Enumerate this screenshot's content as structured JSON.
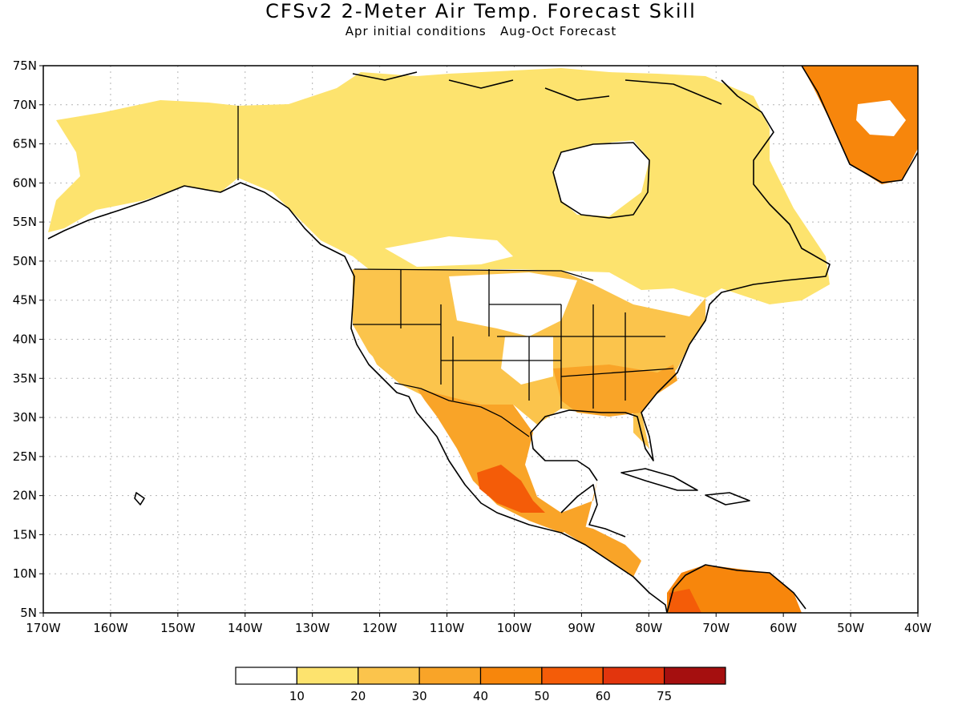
{
  "title": "CFSv2 2-Meter Air Temp. Forecast Skill",
  "subtitle_left": "Apr initial conditions",
  "subtitle_right": "Aug-Oct Forecast",
  "lat_labels": [
    "75N",
    "70N",
    "65N",
    "60N",
    "55N",
    "50N",
    "45N",
    "40N",
    "35N",
    "30N",
    "25N",
    "20N",
    "15N",
    "10N",
    "5N"
  ],
  "lon_labels": [
    "170W",
    "160W",
    "150W",
    "140W",
    "130W",
    "120W",
    "110W",
    "100W",
    "90W",
    "80W",
    "70W",
    "60W",
    "50W",
    "40W"
  ],
  "colorbar": {
    "colors": [
      "#ffffff",
      "#fde36e",
      "#fbc44c",
      "#f9a428",
      "#f7860c",
      "#f45c08",
      "#e2350d",
      "#a50f0f"
    ],
    "labels": [
      "10",
      "20",
      "30",
      "40",
      "50",
      "60",
      "75"
    ]
  },
  "map_colors": {
    "land_fill": "#fde36e",
    "outline": "#000000",
    "grid": "#b4b4b4"
  },
  "regions": [
    {
      "name": "alaska",
      "level": 1
    },
    {
      "name": "canada",
      "level": 1
    },
    {
      "name": "hudson-bay",
      "level": 0
    },
    {
      "name": "greenland",
      "level": 4
    },
    {
      "name": "us-southwest",
      "level": 2
    },
    {
      "name": "us-southeast",
      "level": 3
    },
    {
      "name": "mexico",
      "level": 3
    },
    {
      "name": "central-mexico-core",
      "level": 5
    },
    {
      "name": "northern-south-america",
      "level": 4
    }
  ]
}
